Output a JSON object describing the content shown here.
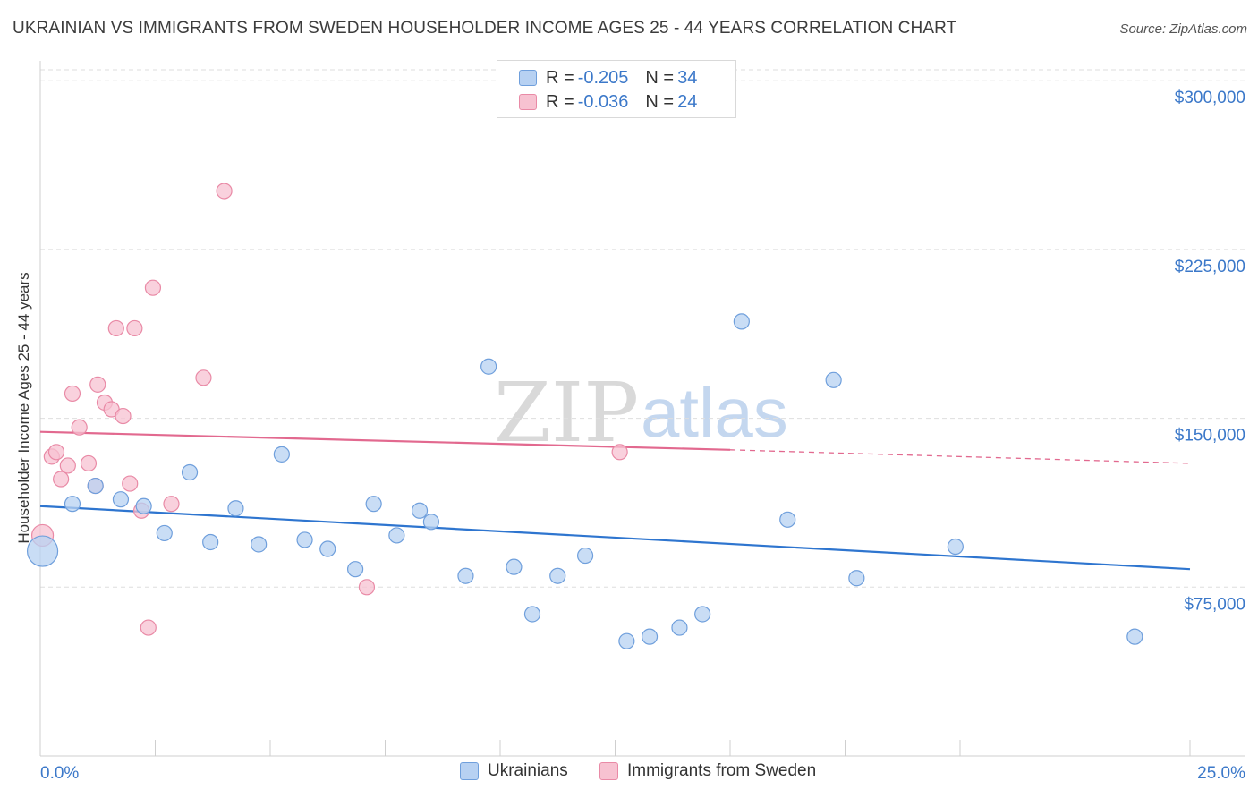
{
  "header": {
    "title": "UKRAINIAN VS IMMIGRANTS FROM SWEDEN HOUSEHOLDER INCOME AGES 25 - 44 YEARS CORRELATION CHART",
    "source": "Source: ZipAtlas.com"
  },
  "watermark": {
    "zip": "ZIP",
    "atlas": "atlas"
  },
  "legend": {
    "rows": [
      {
        "r_label": "R = ",
        "r_value": "-0.205",
        "n_label": "N = ",
        "n_value": "34"
      },
      {
        "r_label": "R = ",
        "r_value": "-0.036",
        "n_label": "N = ",
        "n_value": "24"
      }
    ]
  },
  "bottom_legend": {
    "series1": "Ukrainians",
    "series2": "Immigrants from Sweden"
  },
  "colors": {
    "blue_fill": "#b7d1f2",
    "blue_stroke": "#6f9fdc",
    "blue_line": "#2e75cf",
    "pink_fill": "#f7c2d1",
    "pink_stroke": "#e98aa6",
    "pink_line": "#e2698f",
    "grid": "#dedede",
    "tick_text": "#3b78c9"
  },
  "chart_data": {
    "type": "scatter",
    "title": "UKRAINIAN VS IMMIGRANTS FROM SWEDEN HOUSEHOLDER INCOME AGES 25 - 44 YEARS CORRELATION CHART",
    "xlabel": "",
    "ylabel": "Householder Income Ages 25 - 44 years",
    "xlim": [
      0,
      25
    ],
    "ylim": [
      0,
      312000
    ],
    "x_tick_labels": [
      "0.0%",
      "25.0%"
    ],
    "y_ticks": [
      75000,
      150000,
      225000,
      300000
    ],
    "y_tick_labels": [
      "$75,000",
      "$150,000",
      "$225,000",
      "$300,000"
    ],
    "grid": true,
    "legend_position": "top-center",
    "series": [
      {
        "name": "Ukrainians",
        "r": -0.205,
        "n": 34,
        "points": [
          {
            "x": 0.05,
            "y": 91000,
            "s": "large"
          },
          {
            "x": 0.7,
            "y": 112000
          },
          {
            "x": 1.2,
            "y": 120000
          },
          {
            "x": 1.75,
            "y": 114000
          },
          {
            "x": 2.25,
            "y": 111000
          },
          {
            "x": 2.7,
            "y": 99000
          },
          {
            "x": 3.25,
            "y": 126000
          },
          {
            "x": 3.7,
            "y": 95000
          },
          {
            "x": 4.25,
            "y": 110000
          },
          {
            "x": 4.75,
            "y": 94000
          },
          {
            "x": 5.25,
            "y": 134000
          },
          {
            "x": 5.75,
            "y": 96000
          },
          {
            "x": 6.25,
            "y": 92000
          },
          {
            "x": 6.85,
            "y": 83000
          },
          {
            "x": 7.25,
            "y": 112000
          },
          {
            "x": 7.75,
            "y": 98000
          },
          {
            "x": 8.25,
            "y": 109000
          },
          {
            "x": 8.5,
            "y": 104000
          },
          {
            "x": 9.25,
            "y": 80000
          },
          {
            "x": 9.75,
            "y": 173000
          },
          {
            "x": 10.3,
            "y": 84000
          },
          {
            "x": 10.7,
            "y": 63000
          },
          {
            "x": 11.25,
            "y": 80000
          },
          {
            "x": 11.85,
            "y": 89000
          },
          {
            "x": 12.75,
            "y": 51000
          },
          {
            "x": 13.25,
            "y": 53000
          },
          {
            "x": 13.9,
            "y": 57000
          },
          {
            "x": 14.4,
            "y": 63000
          },
          {
            "x": 15.25,
            "y": 193000
          },
          {
            "x": 16.25,
            "y": 105000
          },
          {
            "x": 17.25,
            "y": 167000
          },
          {
            "x": 17.75,
            "y": 79000
          },
          {
            "x": 19.9,
            "y": 93000
          },
          {
            "x": 23.8,
            "y": 53000
          }
        ],
        "trend": {
          "x": [
            0,
            25
          ],
          "y": [
            111000,
            83000
          ],
          "style": "solid"
        }
      },
      {
        "name": "Immigrants from Sweden",
        "r": -0.036,
        "n": 24,
        "points": [
          {
            "x": 0.05,
            "y": 98000,
            "s": "medium"
          },
          {
            "x": 0.25,
            "y": 133000
          },
          {
            "x": 0.35,
            "y": 135000
          },
          {
            "x": 0.45,
            "y": 123000
          },
          {
            "x": 0.6,
            "y": 129000
          },
          {
            "x": 0.7,
            "y": 161000
          },
          {
            "x": 0.85,
            "y": 146000
          },
          {
            "x": 1.05,
            "y": 130000
          },
          {
            "x": 1.2,
            "y": 120000
          },
          {
            "x": 1.25,
            "y": 165000
          },
          {
            "x": 1.4,
            "y": 157000
          },
          {
            "x": 1.55,
            "y": 154000
          },
          {
            "x": 1.65,
            "y": 190000
          },
          {
            "x": 1.8,
            "y": 151000
          },
          {
            "x": 1.95,
            "y": 121000
          },
          {
            "x": 2.05,
            "y": 190000
          },
          {
            "x": 2.2,
            "y": 109000
          },
          {
            "x": 2.35,
            "y": 57000
          },
          {
            "x": 2.45,
            "y": 208000
          },
          {
            "x": 2.85,
            "y": 112000
          },
          {
            "x": 3.55,
            "y": 168000
          },
          {
            "x": 4.0,
            "y": 251000
          },
          {
            "x": 7.1,
            "y": 75000
          },
          {
            "x": 12.6,
            "y": 135000
          }
        ],
        "trend": {
          "x": [
            0,
            15
          ],
          "y": [
            144000,
            136000
          ],
          "style": "solid",
          "dashed_extension": {
            "x": [
              15,
              25
            ],
            "y": [
              136000,
              130000
            ]
          }
        }
      }
    ]
  }
}
